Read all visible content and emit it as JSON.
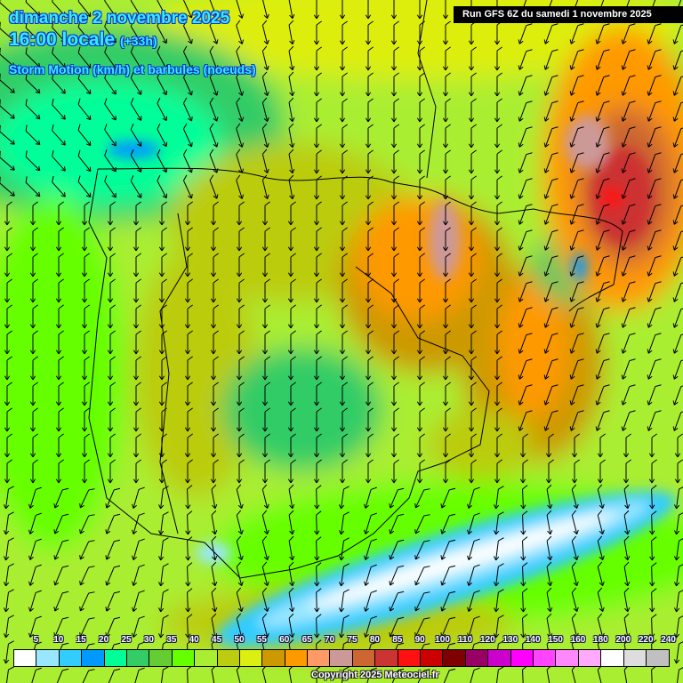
{
  "header": {
    "date": "dimanche 2 novembre 2025",
    "time": "16:00 locale",
    "lead": "(+33h)",
    "parameter": "Storm Motion (km/h) et barbules (noeuds)"
  },
  "run_info": "Run GFS 6Z du samedi 1 novembre 2025",
  "legend": {
    "labels": [
      "5",
      "10",
      "15",
      "20",
      "25",
      "30",
      "35",
      "40",
      "45",
      "50",
      "55",
      "60",
      "65",
      "70",
      "75",
      "80",
      "85",
      "90",
      "100",
      "110",
      "120",
      "130",
      "140",
      "150",
      "160",
      "180",
      "200",
      "220",
      "240"
    ],
    "colors": [
      "#ffffff",
      "#99e6ff",
      "#33ccff",
      "#0099ff",
      "#00ff99",
      "#33cc66",
      "#66cc33",
      "#66ff00",
      "#aaee33",
      "#bbcc11",
      "#ddee11",
      "#cc9900",
      "#ff9900",
      "#ff9966",
      "#cc9999",
      "#cc6633",
      "#cc3333",
      "#ff1111",
      "#cc0000",
      "#7f0000",
      "#990066",
      "#cc00cc",
      "#ff00ff",
      "#ff44ff",
      "#ff88ff",
      "#ffaaff",
      "#ffffff",
      "#dddddd",
      "#c0c0c0"
    ]
  },
  "copyright": "Copyright 2025 Meteociel.fr"
}
